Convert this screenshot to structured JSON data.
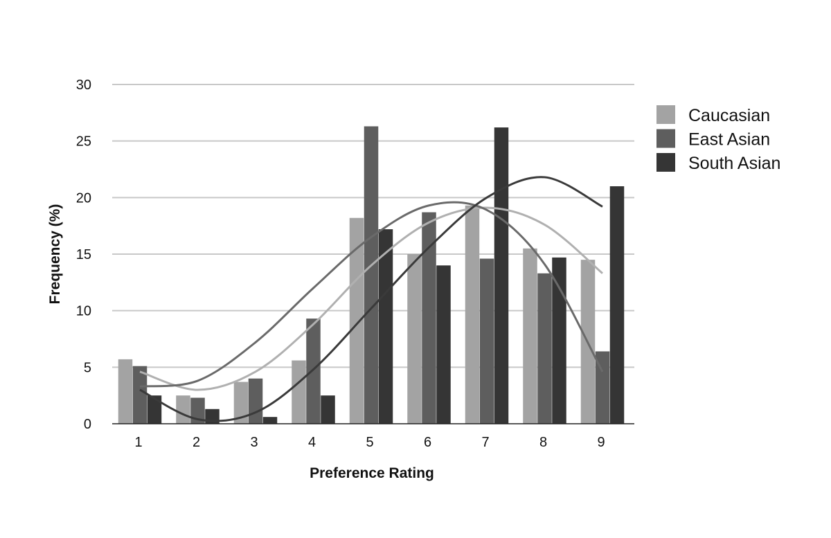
{
  "chart_data": {
    "type": "bar",
    "title": "",
    "xlabel": "Preference Rating",
    "ylabel": "Frequency (%)",
    "categories": [
      "1",
      "2",
      "3",
      "4",
      "5",
      "6",
      "7",
      "8",
      "9"
    ],
    "ylim": [
      0,
      30
    ],
    "yticks": [
      "0",
      "5",
      "10",
      "15",
      "20",
      "25",
      "30"
    ],
    "grid": true,
    "legend_position": "right",
    "series": [
      {
        "name": "Caucasian",
        "color": "#a3a3a3",
        "values": [
          5.7,
          2.5,
          3.7,
          5.6,
          18.2,
          15.0,
          19.3,
          15.5,
          14.5
        ]
      },
      {
        "name": "East Asian",
        "color": "#5e5e5e",
        "values": [
          5.1,
          2.3,
          4.0,
          9.3,
          26.3,
          18.7,
          14.6,
          13.3,
          6.4
        ]
      },
      {
        "name": "South Asian",
        "color": "#353535",
        "values": [
          2.5,
          1.3,
          0.6,
          2.5,
          17.2,
          14.0,
          26.2,
          14.7,
          21.0
        ]
      }
    ],
    "trendlines": [
      {
        "series": "Caucasian",
        "color": "#b0b0b0",
        "values": [
          4.6,
          3.0,
          4.6,
          8.8,
          14.0,
          17.8,
          19.1,
          17.6,
          13.3
        ]
      },
      {
        "series": "East Asian",
        "color": "#6a6a6a",
        "values": [
          3.3,
          3.8,
          7.2,
          12.0,
          16.5,
          19.3,
          18.9,
          14.1,
          4.6
        ]
      },
      {
        "series": "South Asian",
        "color": "#3a3a3a",
        "values": [
          3.0,
          0.4,
          1.0,
          4.8,
          10.2,
          15.6,
          20.0,
          21.8,
          19.2
        ]
      }
    ]
  }
}
